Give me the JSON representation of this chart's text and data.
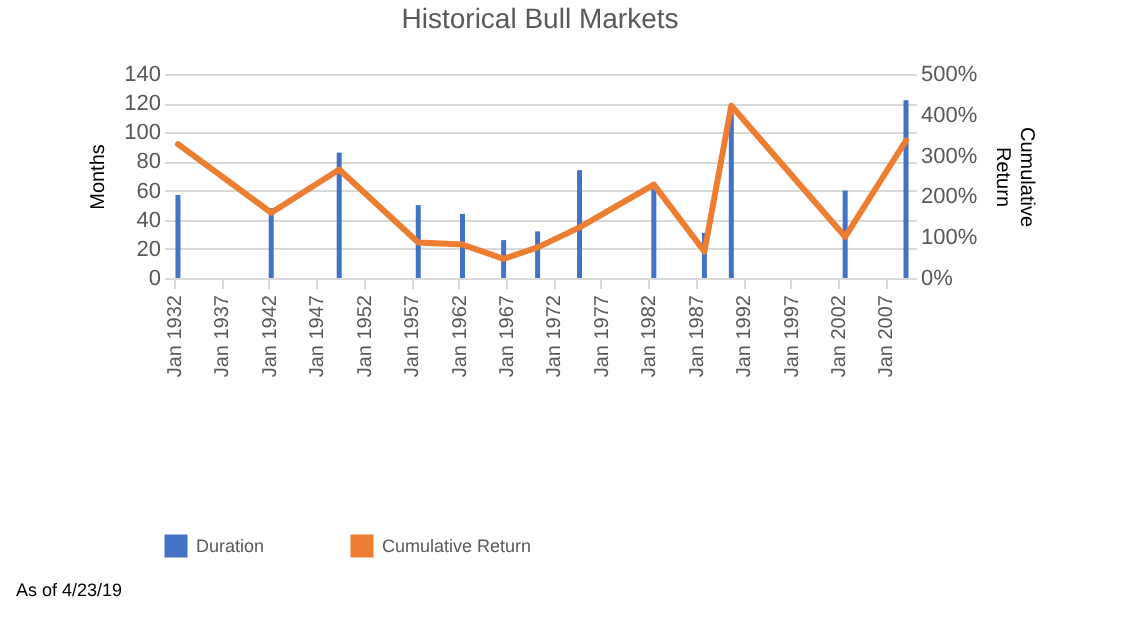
{
  "chart_data": {
    "type": "bar",
    "title": "Historical Bull Markets",
    "ylabel": "Months",
    "y2label": "Cumulative Return",
    "x": [
      "1932-06",
      "1942-04",
      "1949-06",
      "1957-10",
      "1962-06",
      "1966-10",
      "1970-05",
      "1974-10",
      "1982-08",
      "1987-12",
      "1990-10",
      "2002-10",
      "2009-03"
    ],
    "series": [
      {
        "name": "Duration",
        "color": "#4472c4",
        "values": [
          57,
          48,
          86,
          50,
          44,
          26,
          32,
          74,
          61,
          31,
          113,
          60,
          122
        ]
      },
      {
        "name": "Cumulative Return",
        "type": "line",
        "axis": "y2",
        "color": "#ed7d31",
        "values": [
          328,
          160,
          266,
          87,
          82,
          47,
          75,
          124,
          229,
          65,
          422,
          101,
          337
        ]
      }
    ],
    "xlim": [
      "1932-01",
      "2009-03"
    ],
    "xticks": [
      {
        "value": "1932-01",
        "label": "Jan 1932"
      },
      {
        "value": "1937-01",
        "label": "Jan 1937"
      },
      {
        "value": "1942-01",
        "label": "Jan 1942"
      },
      {
        "value": "1947-01",
        "label": "Jan 1947"
      },
      {
        "value": "1952-01",
        "label": "Jan 1952"
      },
      {
        "value": "1957-01",
        "label": "Jan 1957"
      },
      {
        "value": "1962-01",
        "label": "Jan 1962"
      },
      {
        "value": "1967-01",
        "label": "Jan 1967"
      },
      {
        "value": "1972-01",
        "label": "Jan 1972"
      },
      {
        "value": "1977-01",
        "label": "Jan 1977"
      },
      {
        "value": "1982-01",
        "label": "Jan 1982"
      },
      {
        "value": "1987-01",
        "label": "Jan 1987"
      },
      {
        "value": "1992-01",
        "label": "Jan 1992"
      },
      {
        "value": "1997-01",
        "label": "Jan 1997"
      },
      {
        "value": "2002-01",
        "label": "Jan 2002"
      },
      {
        "value": "2007-01",
        "label": "Jan 2007"
      }
    ],
    "ylim": [
      0,
      140
    ],
    "yticks": [
      0,
      20,
      40,
      60,
      80,
      100,
      120,
      140
    ],
    "y2lim": [
      0,
      500
    ],
    "y2ticks": [
      {
        "value": 0,
        "label": "0%"
      },
      {
        "value": 100,
        "label": "100%"
      },
      {
        "value": 200,
        "label": "200%"
      },
      {
        "value": 300,
        "label": "300%"
      },
      {
        "value": 400,
        "label": "400%"
      },
      {
        "value": 500,
        "label": "500%"
      }
    ],
    "grid": "y",
    "legend": "bottom",
    "annotations": [
      "As of 4/23/19"
    ]
  }
}
